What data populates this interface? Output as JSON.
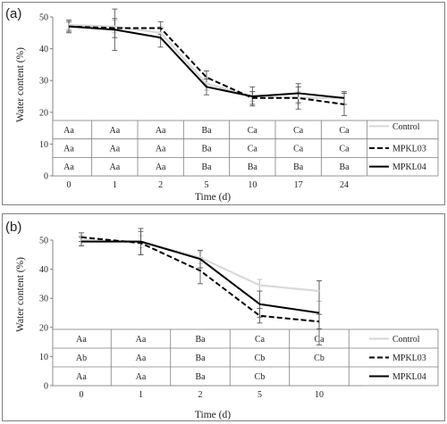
{
  "chart_data": [
    {
      "type": "line",
      "panel_label": "(a)",
      "categories": [
        "0",
        "1",
        "2",
        "5",
        "10",
        "17",
        "24"
      ],
      "xlabel": "Time (d)",
      "ylabel": "Water content (%)",
      "ylim": [
        0,
        50
      ],
      "yticks": [
        "0",
        "10",
        "20",
        "30",
        "40",
        "50"
      ],
      "series": [
        {
          "name": "Control",
          "color": "#d9d9d9",
          "dash": "solid",
          "values": [
            47.5,
            47,
            45,
            29,
            25,
            24.5,
            24.5
          ],
          "errors": [
            1.5,
            2,
            2,
            2,
            1.5,
            2,
            2
          ]
        },
        {
          "name": "MPKL03",
          "color": "#000000",
          "dash": "dashed",
          "values": [
            47,
            46.5,
            46.5,
            31,
            24.5,
            24.5,
            22.5
          ],
          "errors": [
            2,
            3,
            2,
            2,
            2,
            3.5,
            3.5
          ]
        },
        {
          "name": "MPKL04",
          "color": "#000000",
          "dash": "solid",
          "values": [
            47,
            46,
            43.5,
            28,
            25,
            26,
            24.5
          ],
          "errors": [
            1.5,
            6.5,
            3,
            2.5,
            3,
            3,
            2
          ]
        }
      ],
      "table_rows": [
        [
          "Aa",
          "Aa",
          "Aa",
          "Ba",
          "Ca",
          "Ca",
          "Ca"
        ],
        [
          "Aa",
          "Aa",
          "Aa",
          "Ba",
          "Ca",
          "Ca",
          "Ca"
        ],
        [
          "Aa",
          "Aa",
          "Aa",
          "Ba",
          "Ba",
          "Ba",
          "Ba"
        ]
      ]
    },
    {
      "type": "line",
      "panel_label": "(b)",
      "categories": [
        "0",
        "1",
        "2",
        "5",
        "10"
      ],
      "xlabel": "Time (d)",
      "ylabel": "Water content (%)",
      "ylim": [
        0,
        50
      ],
      "yticks": [
        "0",
        "10",
        "20",
        "30",
        "40",
        "50"
      ],
      "series": [
        {
          "name": "Control",
          "color": "#d9d9d9",
          "dash": "solid",
          "values": [
            50,
            49.5,
            44,
            34.5,
            32.5
          ],
          "errors": [
            1.5,
            2,
            2,
            2,
            3.5
          ]
        },
        {
          "name": "MPKL03",
          "color": "#000000",
          "dash": "dashed",
          "values": [
            51,
            49,
            39.5,
            24,
            22
          ],
          "errors": [
            1.5,
            4,
            4.5,
            2.5,
            2.5
          ]
        },
        {
          "name": "MPKL04",
          "color": "#000000",
          "dash": "solid",
          "values": [
            49.5,
            49.5,
            43.5,
            28,
            25
          ],
          "errors": [
            1.5,
            4.5,
            3,
            4.5,
            11
          ]
        }
      ],
      "table_rows": [
        [
          "Aa",
          "Aa",
          "Ba",
          "Ca",
          "Ca"
        ],
        [
          "Ab",
          "Aa",
          "Ba",
          "Cb",
          "Cb"
        ],
        [
          "Aa",
          "Aa",
          "Ba",
          "Cb",
          ""
        ]
      ]
    }
  ]
}
